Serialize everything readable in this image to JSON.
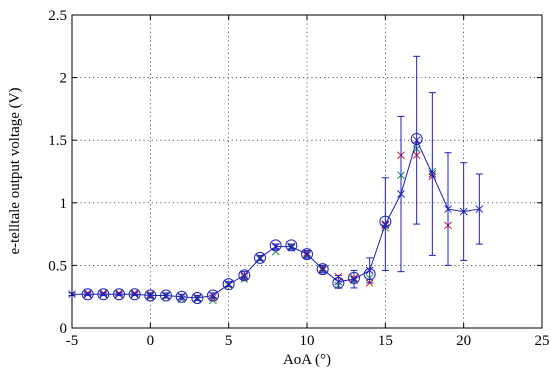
{
  "chart_data": {
    "type": "line",
    "title": "",
    "xlabel": "AoA (°)",
    "ylabel": "e-telltale output voltage (V)",
    "xlim": [
      -5,
      25
    ],
    "ylim": [
      0,
      2.5
    ],
    "xticks": [
      -5,
      0,
      5,
      10,
      15,
      20,
      25
    ],
    "yticks": [
      0,
      0.5,
      1,
      1.5,
      2,
      2.5
    ],
    "xtick_labels": [
      "-5",
      "0",
      "5",
      "10",
      "15",
      "20",
      "25"
    ],
    "ytick_labels": [
      "0",
      "0.5",
      "1",
      "1.5",
      "2",
      "2.5"
    ],
    "grid": true,
    "legend": "none",
    "mean_series": {
      "color": "#1f1fbf",
      "x": [
        -5,
        -4,
        -3,
        -2,
        -1,
        0,
        1,
        2,
        3,
        4,
        5,
        6,
        7,
        8,
        9,
        10,
        11,
        12,
        13,
        14,
        15,
        16,
        17,
        18,
        19,
        20,
        21
      ],
      "y": [
        0.27,
        0.27,
        0.27,
        0.27,
        0.27,
        0.26,
        0.26,
        0.25,
        0.24,
        0.26,
        0.35,
        0.42,
        0.56,
        0.65,
        0.65,
        0.59,
        0.47,
        0.37,
        0.39,
        0.46,
        0.83,
        1.07,
        1.5,
        1.23,
        0.95,
        0.93,
        0.95
      ],
      "err": [
        0.01,
        0.01,
        0.01,
        0.01,
        0.01,
        0.02,
        0.02,
        0.02,
        0.02,
        0.02,
        0.02,
        0.03,
        0.02,
        0.02,
        0.02,
        0.03,
        0.03,
        0.05,
        0.07,
        0.1,
        0.37,
        0.62,
        0.67,
        0.65,
        0.45,
        0.39,
        0.28
      ]
    },
    "circle_series": {
      "color": "#1f1fbf",
      "x": [
        -4,
        -3,
        -2,
        -1,
        0,
        1,
        2,
        3,
        4,
        5,
        6,
        7,
        8,
        9,
        10,
        11,
        12,
        13,
        14,
        15,
        17
      ],
      "y": [
        0.27,
        0.27,
        0.27,
        0.27,
        0.26,
        0.26,
        0.25,
        0.24,
        0.26,
        0.35,
        0.42,
        0.56,
        0.66,
        0.66,
        0.59,
        0.47,
        0.36,
        0.4,
        0.43,
        0.85,
        1.51
      ]
    },
    "red_x_series": {
      "color": "#d22020",
      "x": [
        -4,
        -3,
        -2,
        -1,
        0,
        1,
        2,
        3,
        4,
        5,
        6,
        7,
        8,
        9,
        10,
        11,
        12,
        13,
        14,
        15,
        16,
        17,
        18,
        19
      ],
      "y": [
        0.28,
        0.28,
        0.28,
        0.28,
        0.27,
        0.26,
        0.25,
        0.24,
        0.24,
        0.35,
        0.41,
        0.56,
        0.65,
        0.65,
        0.6,
        0.48,
        0.41,
        0.4,
        0.36,
        0.82,
        1.38,
        1.38,
        1.21,
        0.82
      ]
    },
    "green_x_series": {
      "color": "#1a9a3a",
      "x": [
        -4,
        -3,
        -2,
        -1,
        0,
        1,
        2,
        3,
        4,
        5,
        6,
        7,
        8,
        9,
        10,
        11,
        12,
        13,
        14,
        15,
        16,
        17,
        18
      ],
      "y": [
        0.27,
        0.27,
        0.27,
        0.27,
        0.25,
        0.25,
        0.23,
        0.23,
        0.22,
        0.34,
        0.39,
        0.55,
        0.61,
        0.64,
        0.58,
        0.46,
        0.34,
        0.38,
        0.4,
        0.8,
        1.22,
        1.43,
        1.25
      ]
    }
  }
}
